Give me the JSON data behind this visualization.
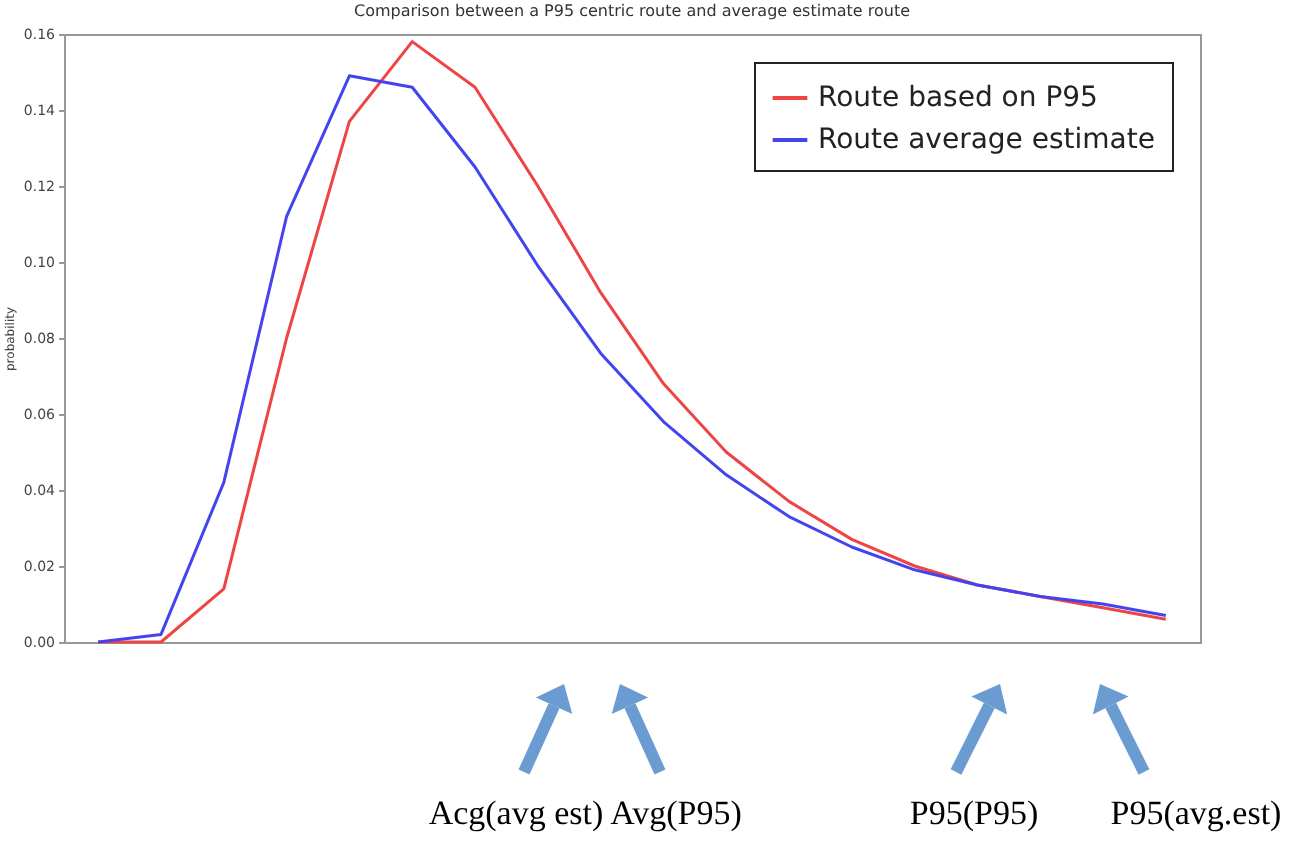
{
  "chart_data": {
    "type": "line",
    "title": "Comparison between a P95 centric route and average estimate route",
    "ylabel": "probability",
    "categories": [
      null,
      null,
      null,
      null,
      null,
      null,
      null,
      null,
      null,
      null,
      null,
      null,
      null,
      null,
      null,
      null,
      null,
      null
    ],
    "series": [
      {
        "name": "Route based on P95",
        "color": "#ee4444",
        "values": [
          0,
          0,
          0.014,
          0.08,
          0.137,
          0.158,
          0.146,
          0.12,
          0.092,
          0.068,
          0.05,
          0.037,
          0.027,
          0.02,
          0.015,
          0.012,
          0.009,
          0.006
        ]
      },
      {
        "name": "Route average estimate",
        "color": "#4444ee",
        "values": [
          0,
          0.002,
          0.042,
          0.112,
          0.149,
          0.146,
          0.125,
          0.099,
          0.076,
          0.058,
          0.044,
          0.033,
          0.025,
          0.019,
          0.015,
          0.012,
          0.01,
          0.007
        ]
      }
    ],
    "ylim": [
      0,
      0.16
    ],
    "yticks": [
      {
        "value": 0,
        "label": "0.00"
      },
      {
        "value": 0.02,
        "label": "0.02"
      },
      {
        "value": 0.04,
        "label": "0.04"
      },
      {
        "value": 0.06,
        "label": "0.06"
      },
      {
        "value": 0.08,
        "label": "0.08"
      },
      {
        "value": 0.1,
        "label": "0.10"
      },
      {
        "value": 0.12,
        "label": "0.12"
      },
      {
        "value": 0.14,
        "label": "0.14"
      },
      {
        "value": 0.16,
        "label": "0.16"
      }
    ],
    "legend": "top right",
    "grid": false,
    "tick_labels": "y",
    "annotations": [
      "Acg(avg est)",
      "Avg(P95)",
      "P95(P95)",
      "P95(avg.est)"
    ]
  }
}
